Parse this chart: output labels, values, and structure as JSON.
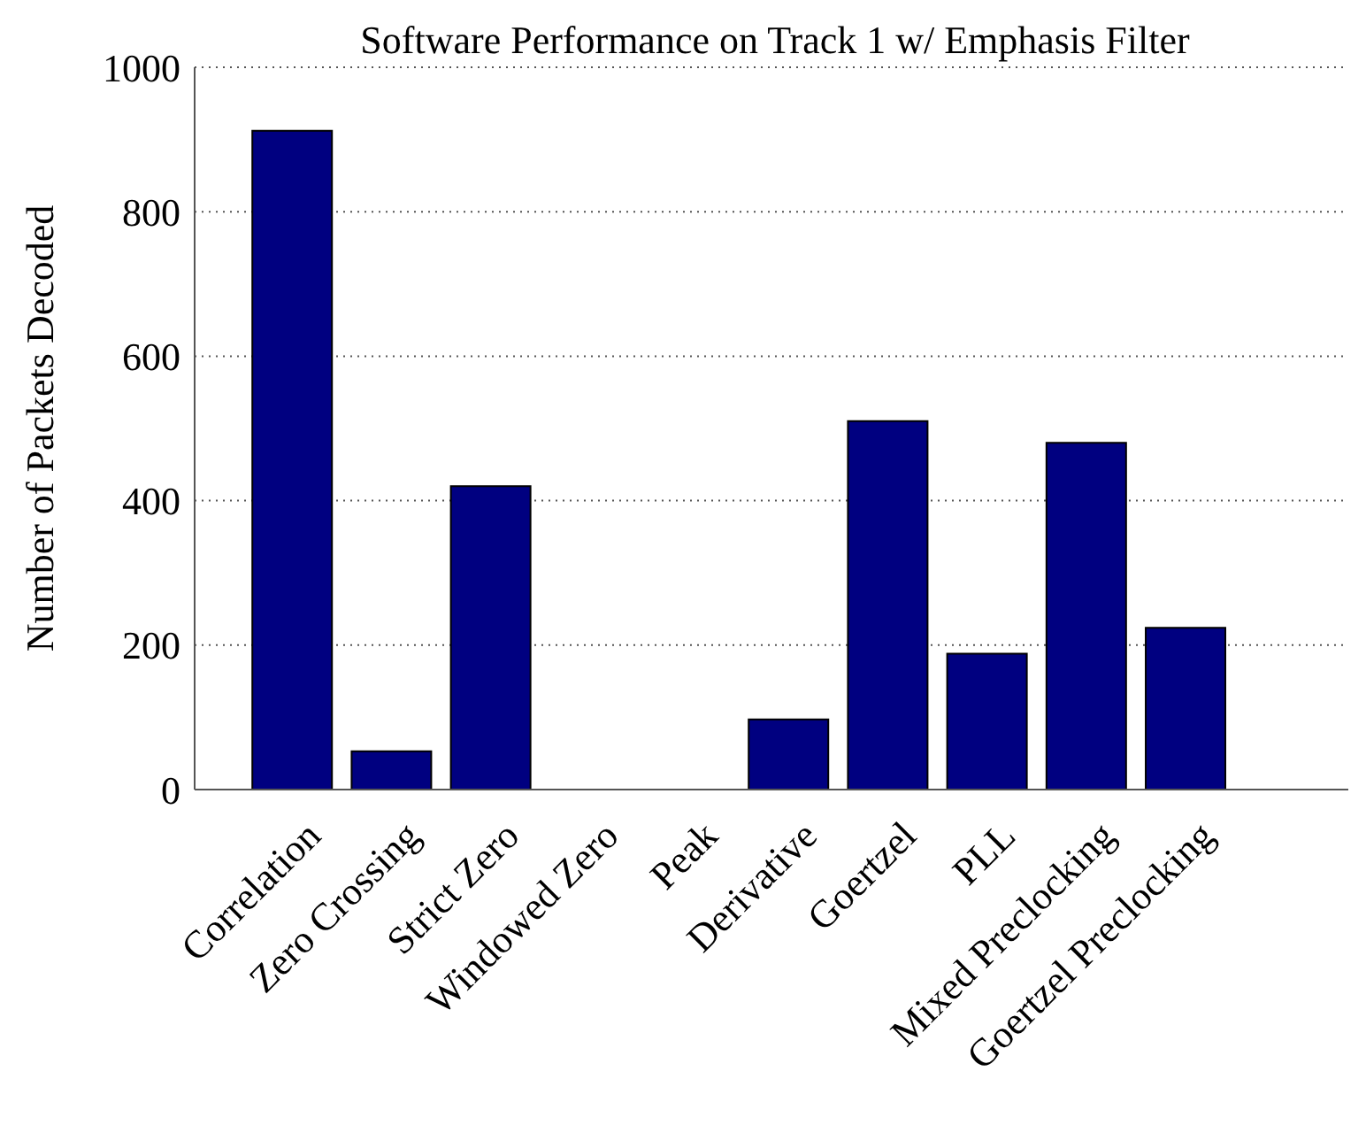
{
  "chart_data": {
    "type": "bar",
    "title": "Software Performance on Track 1 w/ Emphasis Filter",
    "ylabel": "Number of Packets Decoded",
    "categories": [
      "Correlation",
      "Zero Crossing",
      "Strict Zero",
      "Windowed Zero",
      "Peak",
      "Derivative",
      "Goertzel",
      "PLL",
      "Mixed Preclocking",
      "Goertzel Preclocking"
    ],
    "values": [
      912,
      53,
      420,
      0,
      0,
      97,
      510,
      188,
      480,
      224
    ],
    "color": "#000080",
    "ylim": [
      0,
      1000
    ],
    "yticks": [
      0,
      200,
      400,
      600,
      800,
      1000
    ],
    "grid": "y"
  }
}
